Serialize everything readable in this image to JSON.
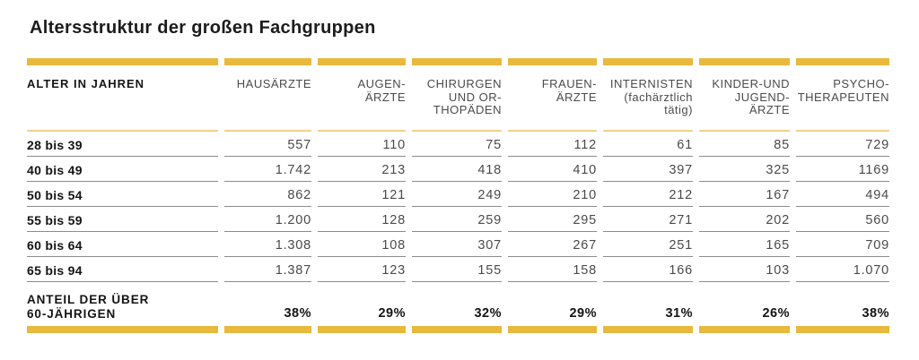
{
  "title": "Altersstruktur der großen Fachgruppen",
  "colors": {
    "gold": "#E8B93D",
    "pale_gold": "#EFD28C",
    "row_line": "#8C8C8C"
  },
  "table": {
    "columns": [
      "ALTER IN JAHREN",
      "HAUSÄRZTE",
      "AUGEN-\nÄRZTE",
      "CHIRURGEN\nUND OR-\nTHOPÄDEN",
      "FRAUEN-\nÄRZTE",
      "INTERNISTEN\n(fachärztlich\ntätig)",
      "KINDER-UND\nJUGEND-\nÄRZTE",
      "PSYCHO-\nTHERAPEUTEN"
    ],
    "rows": [
      {
        "label": "28 bis 39",
        "values": [
          "557",
          "110",
          "75",
          "112",
          "61",
          "85",
          "729"
        ]
      },
      {
        "label": "40 bis 49",
        "values": [
          "1.742",
          "213",
          "418",
          "410",
          "397",
          "325",
          "1169"
        ]
      },
      {
        "label": "50 bis 54",
        "values": [
          "862",
          "121",
          "249",
          "210",
          "212",
          "167",
          "494"
        ]
      },
      {
        "label": "55 bis 59",
        "values": [
          "1.200",
          "128",
          "259",
          "295",
          "271",
          "202",
          "560"
        ]
      },
      {
        "label": "60 bis 64",
        "values": [
          "1.308",
          "108",
          "307",
          "267",
          "251",
          "165",
          "709"
        ]
      },
      {
        "label": "65 bis 94",
        "values": [
          "1.387",
          "123",
          "155",
          "158",
          "166",
          "103",
          "1.070"
        ]
      }
    ],
    "footer": {
      "label": "ANTEIL DER ÜBER\n60-JÄHRIGEN",
      "values": [
        "38%",
        "29%",
        "32%",
        "29%",
        "31%",
        "26%",
        "38%"
      ]
    }
  },
  "chart_data": {
    "type": "table",
    "title": "Altersstruktur der großen Fachgruppen",
    "row_axis_label": "Alter in Jahren",
    "categories": [
      "28 bis 39",
      "40 bis 49",
      "50 bis 54",
      "55 bis 59",
      "60 bis 64",
      "65 bis 94"
    ],
    "series": [
      {
        "name": "Hausärzte",
        "values": [
          557,
          1742,
          862,
          1200,
          1308,
          1387
        ],
        "share_over_60": "38%"
      },
      {
        "name": "Augenärzte",
        "values": [
          110,
          213,
          121,
          128,
          108,
          123
        ],
        "share_over_60": "29%"
      },
      {
        "name": "Chirurgen und Orthopäden",
        "values": [
          75,
          418,
          249,
          259,
          307,
          155
        ],
        "share_over_60": "32%"
      },
      {
        "name": "Frauenärzte",
        "values": [
          112,
          410,
          210,
          295,
          267,
          158
        ],
        "share_over_60": "29%"
      },
      {
        "name": "Internisten (fachärztlich tätig)",
        "values": [
          61,
          397,
          212,
          271,
          251,
          166
        ],
        "share_over_60": "31%"
      },
      {
        "name": "Kinder- und Jugendärzte",
        "values": [
          85,
          325,
          167,
          202,
          165,
          103
        ],
        "share_over_60": "26%"
      },
      {
        "name": "Psychotherapeuten",
        "values": [
          729,
          1169,
          494,
          560,
          709,
          1070
        ],
        "share_over_60": "38%"
      }
    ],
    "footer_row_label": "Anteil der über 60-Jährigen"
  }
}
